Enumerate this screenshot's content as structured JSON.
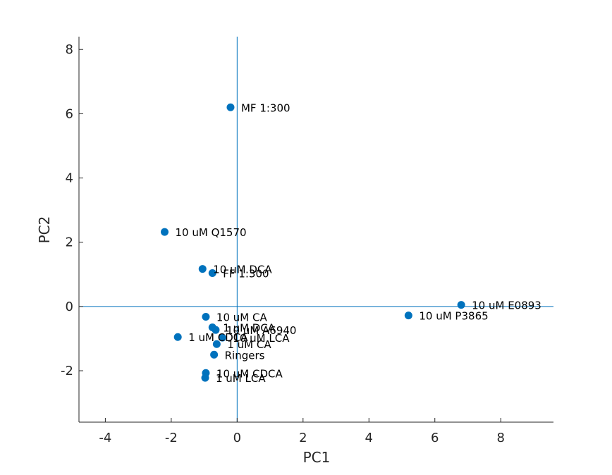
{
  "chart_data": {
    "type": "scatter",
    "title": "",
    "xlabel": "PC1",
    "ylabel": "PC2",
    "xlim": [
      -4.8,
      9.6
    ],
    "ylim": [
      -3.6,
      8.4
    ],
    "xticks": [
      -4,
      -2,
      0,
      2,
      4,
      6,
      8
    ],
    "yticks": [
      -2,
      0,
      2,
      4,
      6,
      8
    ],
    "xtick_labels": [
      "-4",
      "-2",
      "0",
      "2",
      "4",
      "6",
      "8"
    ],
    "ytick_labels": [
      "-2",
      "0",
      "2",
      "4",
      "6",
      "8"
    ],
    "grid": false,
    "legend": "none",
    "reference_lines": {
      "x": 0,
      "y": 0
    },
    "colors": {
      "marker": "#0072bd",
      "reference_line": "#0072bd",
      "axis": "#262626"
    },
    "points": [
      {
        "label": "MF 1:300",
        "x": -0.2,
        "y": 6.2
      },
      {
        "label": "10 uM Q1570",
        "x": -2.2,
        "y": 2.32
      },
      {
        "label": "10 uM DCA",
        "x": -1.05,
        "y": 1.17
      },
      {
        "label": "FF 1:300",
        "x": -0.75,
        "y": 1.04
      },
      {
        "label": "10 uM E0893",
        "x": 6.8,
        "y": 0.05
      },
      {
        "label": "10 uM P3865",
        "x": 5.2,
        "y": -0.28
      },
      {
        "label": "10 uM CA",
        "x": -0.95,
        "y": -0.32
      },
      {
        "label": "1 uM DCA",
        "x": -0.75,
        "y": -0.65
      },
      {
        "label": "10 uM A6940",
        "x": -0.65,
        "y": -0.73
      },
      {
        "label": "1 uM CDCA",
        "x": -1.8,
        "y": -0.95
      },
      {
        "label": "10 uM LCA",
        "x": -0.45,
        "y": -0.97
      },
      {
        "label": "1 uM CA",
        "x": -0.62,
        "y": -1.17
      },
      {
        "label": "Ringers",
        "x": -0.7,
        "y": -1.5
      },
      {
        "label": "10 uM CDCA",
        "x": -0.95,
        "y": -2.07
      },
      {
        "label": "1 uM LCA",
        "x": -0.97,
        "y": -2.22
      }
    ]
  }
}
